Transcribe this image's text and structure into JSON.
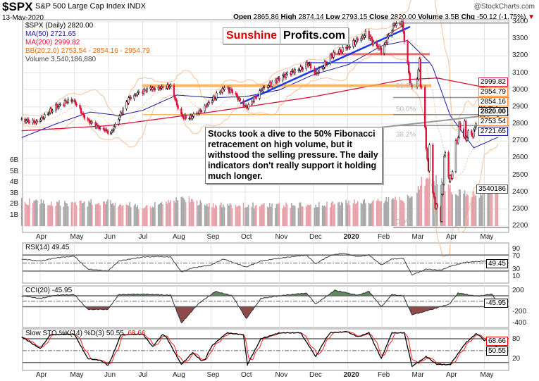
{
  "header": {
    "symbol": "$SPX",
    "name": "S&P 500 Large Cap Index",
    "exchange": "INDX",
    "source": "@StockCharts.com",
    "date": "13-May-2020",
    "open_label": "Open",
    "open": "2865.86",
    "high_label": "High",
    "high": "2874.14",
    "low_label": "Low",
    "low": "2793.15",
    "close_label": "Close",
    "close": "2820.00",
    "volume_label": "Volume",
    "volume": "3.5B",
    "chg_label": "Chg",
    "chg": "-50.12 (-1.75%)",
    "chg_arrow": "▼"
  },
  "legend": {
    "price": "$SPX (Daily) 2820.00",
    "ma50": "MA(50) 2721.65",
    "ma200": "MA(200) 2999.82",
    "bb": "BB(20,2.0) 2753.54 - 2854.16 - 2954.79",
    "volume": "Volume 3,540,186,880"
  },
  "logo": {
    "part1": "Sunshine",
    "part2": "Profits.com"
  },
  "annotation": "Stocks took a dive to the 50% Fibonacci retracement on high volume, but it withstood the selling pressure. The daily indicators don't really support it holding much longer.",
  "colors": {
    "ma50": "#1a1aa6",
    "ma200": "#dc143c",
    "bb": "#ff8c3a",
    "down": "#dc143c",
    "up": "#000000",
    "vol_down": "#e8a0a8",
    "vol_up": "#a8a8a8",
    "cci_pos": "#5e8a5e",
    "cci_neg": "#8e4a4a",
    "sto_d": "#ff2020"
  },
  "value_tags": {
    "ma200": "2999.82",
    "bb_upper": "2954.79",
    "bb_mid": "2854.16",
    "close": "2820.00",
    "bb_lower": "2753.54",
    "ma50": "2721.65",
    "volume": "3540186",
    "rsi": "49.45",
    "cci": "-45.95",
    "sto_k": "50.55",
    "sto_d": "68.66"
  },
  "fib_labels": [
    "61.8%",
    "50.0%",
    "38.2%",
    "0.0%"
  ],
  "fib_levels": [
    3393,
    2955,
    2855,
    2790,
    2192
  ],
  "months": [
    "Apr",
    "May",
    "Jun",
    "Jul",
    "Aug",
    "Sep",
    "Oct",
    "Nov",
    "Dec",
    "2020",
    "Feb",
    "Mar",
    "Apr",
    "May"
  ],
  "panels": {
    "rsi": "RSI(14) 49.45",
    "cci": "CCI(20) -45.95",
    "sto_a": "Slow STO %K(14) %D(3) 50.55,",
    "sto_b": "68.66"
  },
  "chart_data": {
    "type": "line",
    "title": "$SPX S&P 500 Large Cap Index (Daily)",
    "price_axis": {
      "ticks": [
        "3400",
        "3300",
        "3200",
        "3100",
        "3000",
        "2900",
        "2800",
        "2700",
        "2600",
        "2500",
        "2400",
        "2300",
        "2200"
      ],
      "range": [
        2200,
        3400
      ]
    },
    "volume_axis": {
      "ticks": [
        "6B",
        "5B",
        "4B",
        "3B",
        "2B",
        "1B"
      ]
    },
    "rsi_axis": [
      "90",
      "70",
      "30",
      "10"
    ],
    "cci_axis": [
      "200",
      "-200",
      "-400"
    ],
    "sto_axis": [
      "80",
      "20"
    ],
    "price": [
      [
        "2019-03-15",
        2822
      ],
      [
        "2019-03-28",
        2815
      ],
      [
        "2019-04-15",
        2905
      ],
      [
        "2019-04-30",
        2945
      ],
      [
        "2019-05-13",
        2812
      ],
      [
        "2019-05-31",
        2752
      ],
      [
        "2019-06-03",
        2744
      ],
      [
        "2019-06-20",
        2954
      ],
      [
        "2019-07-03",
        2995
      ],
      [
        "2019-07-26",
        3025
      ],
      [
        "2019-08-05",
        2844
      ],
      [
        "2019-08-15",
        2847
      ],
      [
        "2019-08-30",
        2926
      ],
      [
        "2019-09-12",
        3009
      ],
      [
        "2019-09-20",
        2992
      ],
      [
        "2019-10-02",
        2887
      ],
      [
        "2019-10-15",
        2995
      ],
      [
        "2019-11-01",
        3066
      ],
      [
        "2019-11-27",
        3153
      ],
      [
        "2019-12-03",
        3093
      ],
      [
        "2019-12-20",
        3221
      ],
      [
        "2020-01-02",
        3257
      ],
      [
        "2020-01-17",
        3330
      ],
      [
        "2020-01-31",
        3225
      ],
      [
        "2020-02-12",
        3379
      ],
      [
        "2020-02-19",
        3386
      ],
      [
        "2020-02-28",
        2954
      ],
      [
        "2020-03-04",
        3130
      ],
      [
        "2020-03-09",
        2746
      ],
      [
        "2020-03-12",
        2480
      ],
      [
        "2020-03-13",
        2711
      ],
      [
        "2020-03-16",
        2386
      ],
      [
        "2020-03-23",
        2237
      ],
      [
        "2020-03-26",
        2630
      ],
      [
        "2020-04-01",
        2470
      ],
      [
        "2020-04-09",
        2789
      ],
      [
        "2020-04-21",
        2736
      ],
      [
        "2020-04-29",
        2939
      ],
      [
        "2020-05-01",
        2830
      ],
      [
        "2020-05-08",
        2929
      ],
      [
        "2020-05-11",
        2930
      ],
      [
        "2020-05-13",
        2820
      ]
    ],
    "ma50": [
      [
        "2019-03-15",
        2720
      ],
      [
        "2019-04-15",
        2800
      ],
      [
        "2019-05-15",
        2870
      ],
      [
        "2019-06-10",
        2850
      ],
      [
        "2019-07-01",
        2880
      ],
      [
        "2019-08-01",
        2970
      ],
      [
        "2019-09-01",
        2955
      ],
      [
        "2019-10-01",
        2960
      ],
      [
        "2019-11-01",
        3000
      ],
      [
        "2019-12-01",
        3090
      ],
      [
        "2020-01-02",
        3150
      ],
      [
        "2020-02-01",
        3260
      ],
      [
        "2020-02-24",
        3290
      ],
      [
        "2020-03-15",
        3150
      ],
      [
        "2020-04-01",
        2850
      ],
      [
        "2020-04-22",
        2660
      ],
      [
        "2020-05-13",
        2721.65
      ]
    ],
    "ma200": [
      [
        "2019-03-15",
        2760
      ],
      [
        "2019-06-01",
        2790
      ],
      [
        "2019-09-01",
        2870
      ],
      [
        "2019-12-01",
        2960
      ],
      [
        "2020-02-20",
        3060
      ],
      [
        "2020-03-20",
        3070
      ],
      [
        "2020-05-13",
        2999.82
      ]
    ],
    "volume_b": [
      [
        "2019-03-15",
        2.3
      ],
      [
        "2019-05-01",
        2.0
      ],
      [
        "2019-06-01",
        2.3
      ],
      [
        "2019-07-01",
        1.7
      ],
      [
        "2019-08-05",
        2.6
      ],
      [
        "2019-09-01",
        1.9
      ],
      [
        "2019-12-01",
        1.9
      ],
      [
        "2020-02-24",
        2.5
      ],
      [
        "2020-03-10",
        4.4
      ],
      [
        "2020-03-20",
        4.1
      ],
      [
        "2020-04-01",
        3.3
      ],
      [
        "2020-04-20",
        2.7
      ],
      [
        "2020-05-13",
        3.54
      ]
    ],
    "rsi": [
      [
        "2019-03-15",
        60
      ],
      [
        "2019-04-01",
        55
      ],
      [
        "2019-04-15",
        63
      ],
      [
        "2019-05-01",
        67
      ],
      [
        "2019-05-13",
        35
      ],
      [
        "2019-05-31",
        30
      ],
      [
        "2019-06-10",
        55
      ],
      [
        "2019-07-01",
        65
      ],
      [
        "2019-07-15",
        66
      ],
      [
        "2019-07-26",
        65
      ],
      [
        "2019-08-05",
        28
      ],
      [
        "2019-08-15",
        38
      ],
      [
        "2019-09-01",
        45
      ],
      [
        "2019-09-12",
        60
      ],
      [
        "2019-10-02",
        40
      ],
      [
        "2019-10-15",
        55
      ],
      [
        "2019-11-01",
        62
      ],
      [
        "2019-11-25",
        70
      ],
      [
        "2019-12-03",
        48
      ],
      [
        "2019-12-15",
        68
      ],
      [
        "2019-12-27",
        75
      ],
      [
        "2020-01-10",
        66
      ],
      [
        "2020-01-20",
        70
      ],
      [
        "2020-01-31",
        45
      ],
      [
        "2020-02-10",
        60
      ],
      [
        "2020-02-20",
        62
      ],
      [
        "2020-02-28",
        20
      ],
      [
        "2020-03-10",
        35
      ],
      [
        "2020-03-23",
        32
      ],
      [
        "2020-04-01",
        42
      ],
      [
        "2020-04-15",
        52
      ],
      [
        "2020-05-01",
        55
      ],
      [
        "2020-05-13",
        49.45
      ]
    ],
    "cci": [
      [
        "2019-03-15",
        100
      ],
      [
        "2019-04-01",
        50
      ],
      [
        "2019-04-15",
        110
      ],
      [
        "2019-05-01",
        120
      ],
      [
        "2019-05-13",
        -150
      ],
      [
        "2019-05-31",
        -150
      ],
      [
        "2019-06-10",
        120
      ],
      [
        "2019-07-01",
        130
      ],
      [
        "2019-07-26",
        110
      ],
      [
        "2019-08-05",
        -400
      ],
      [
        "2019-08-20",
        -50
      ],
      [
        "2019-09-05",
        180
      ],
      [
        "2019-09-20",
        100
      ],
      [
        "2019-10-02",
        -320
      ],
      [
        "2019-10-15",
        50
      ],
      [
        "2019-11-01",
        100
      ],
      [
        "2019-11-25",
        150
      ],
      [
        "2019-12-03",
        -50
      ],
      [
        "2019-12-20",
        200
      ],
      [
        "2020-01-10",
        110
      ],
      [
        "2020-01-20",
        180
      ],
      [
        "2020-01-31",
        -100
      ],
      [
        "2020-02-10",
        120
      ],
      [
        "2020-02-20",
        100
      ],
      [
        "2020-02-28",
        -250
      ],
      [
        "2020-03-15",
        -150
      ],
      [
        "2020-03-31",
        -50
      ],
      [
        "2020-04-08",
        150
      ],
      [
        "2020-04-25",
        90
      ],
      [
        "2020-05-08",
        130
      ],
      [
        "2020-05-13",
        -45.95
      ]
    ],
    "sto_k": [
      [
        "2019-03-15",
        85
      ],
      [
        "2019-04-01",
        55
      ],
      [
        "2019-04-10",
        90
      ],
      [
        "2019-05-01",
        92
      ],
      [
        "2019-05-13",
        30
      ],
      [
        "2019-05-25",
        25
      ],
      [
        "2019-06-01",
        12
      ],
      [
        "2019-06-12",
        90
      ],
      [
        "2019-07-01",
        92
      ],
      [
        "2019-07-10",
        60
      ],
      [
        "2019-07-20",
        95
      ],
      [
        "2019-08-05",
        15
      ],
      [
        "2019-08-15",
        45
      ],
      [
        "2019-08-25",
        20
      ],
      [
        "2019-09-01",
        60
      ],
      [
        "2019-09-15",
        95
      ],
      [
        "2019-09-30",
        90
      ],
      [
        "2019-10-03",
        15
      ],
      [
        "2019-10-15",
        80
      ],
      [
        "2019-11-01",
        95
      ],
      [
        "2019-11-20",
        95
      ],
      [
        "2019-12-03",
        35
      ],
      [
        "2019-12-15",
        95
      ],
      [
        "2019-12-31",
        98
      ],
      [
        "2020-01-10",
        85
      ],
      [
        "2020-01-20",
        95
      ],
      [
        "2020-01-31",
        30
      ],
      [
        "2020-02-10",
        95
      ],
      [
        "2020-02-21",
        95
      ],
      [
        "2020-02-28",
        10
      ],
      [
        "2020-03-10",
        35
      ],
      [
        "2020-03-20",
        15
      ],
      [
        "2020-04-01",
        15
      ],
      [
        "2020-04-15",
        70
      ],
      [
        "2020-04-25",
        95
      ],
      [
        "2020-05-01",
        75
      ],
      [
        "2020-05-08",
        85
      ],
      [
        "2020-05-13",
        50.55
      ]
    ]
  }
}
